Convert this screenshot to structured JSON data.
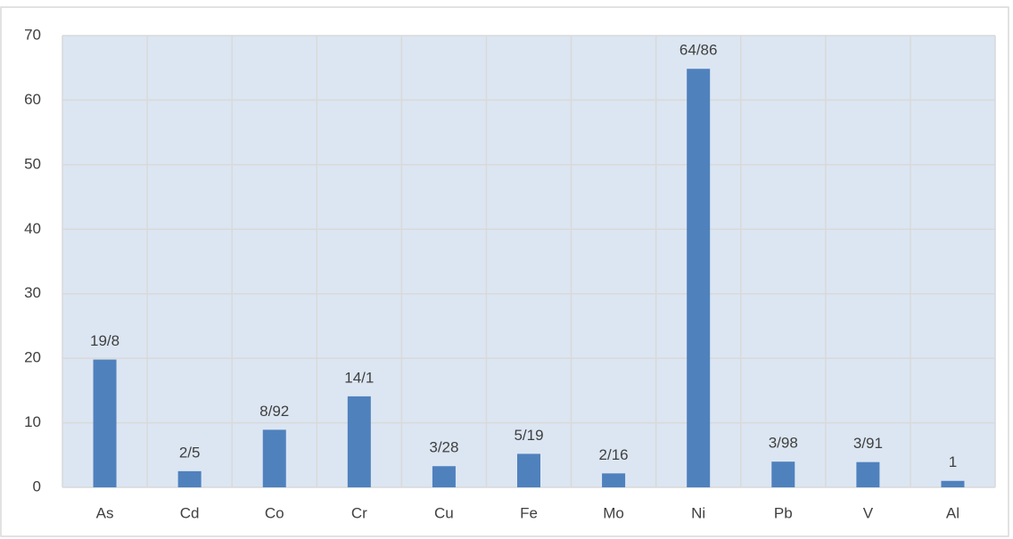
{
  "chart_data": {
    "type": "bar",
    "categories": [
      "As",
      "Cd",
      "Co",
      "Cr",
      "Cu",
      "Fe",
      "Mo",
      "Ni",
      "Pb",
      "V",
      "Al"
    ],
    "values": [
      19.8,
      2.5,
      8.92,
      14.1,
      3.28,
      5.19,
      2.16,
      64.86,
      3.98,
      3.91,
      1
    ],
    "value_labels": [
      "19/8",
      "2/5",
      "8/92",
      "14/1",
      "3/28",
      "5/19",
      "2/16",
      "64/86",
      "3/98",
      "3/91",
      "1"
    ],
    "color": "#4f81bd",
    "ylim": [
      0,
      70
    ],
    "yticks": [
      0,
      10,
      20,
      30,
      40,
      50,
      60,
      70
    ],
    "grid": true
  }
}
